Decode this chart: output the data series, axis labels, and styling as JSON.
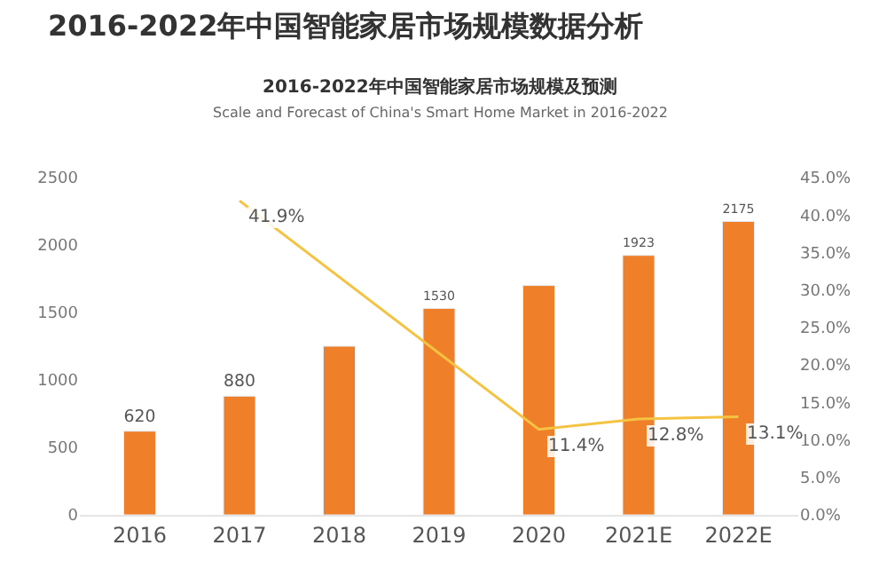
{
  "chart_data": {
    "type": "bar",
    "title": "2016-2022年中国智能家居市场规模数据分析",
    "subtitle": "2016-2022年中国智能家居市场规模及预测",
    "annotations": [
      "Scale and Forecast of China's Smart Home Market in 2016-2022"
    ],
    "categories": [
      "2016",
      "2017",
      "2018",
      "2019",
      "2020",
      "2021E",
      "2022E"
    ],
    "series": [
      {
        "color": "#f07f2a",
        "values": [
          620,
          880,
          1250,
          1530,
          1700,
          1923,
          2175
        ],
        "value_labels": [
          "620",
          "880",
          null,
          "1530",
          null,
          "1923",
          "2175"
        ]
      },
      {
        "type": "line",
        "axis": "y2",
        "color": "#f5c342",
        "values": [
          null,
          41.9,
          null,
          null,
          11.4,
          12.8,
          13.1
        ],
        "value_labels": [
          null,
          "41.9%",
          null,
          null,
          "11.4%",
          "12.8%",
          "13.1%"
        ]
      }
    ],
    "ylim": [
      0,
      2500
    ],
    "yticks": [
      0,
      500,
      1000,
      1500,
      2000,
      2500
    ],
    "y2lim": [
      0,
      45
    ],
    "y2ticks": [
      {
        "value": 0,
        "label": "0.0%"
      },
      {
        "value": 5,
        "label": "5.0%"
      },
      {
        "value": 10,
        "label": "10.0%"
      },
      {
        "value": 15,
        "label": "15.0%"
      },
      {
        "value": 20,
        "label": "20.0%"
      },
      {
        "value": 25,
        "label": "25.0%"
      },
      {
        "value": 30,
        "label": "30.0%"
      },
      {
        "value": 35,
        "label": "35.0%"
      },
      {
        "value": 40,
        "label": "40.0%"
      },
      {
        "value": 45,
        "label": "45.0%"
      }
    ],
    "marker": "none",
    "line_style": "solid"
  }
}
